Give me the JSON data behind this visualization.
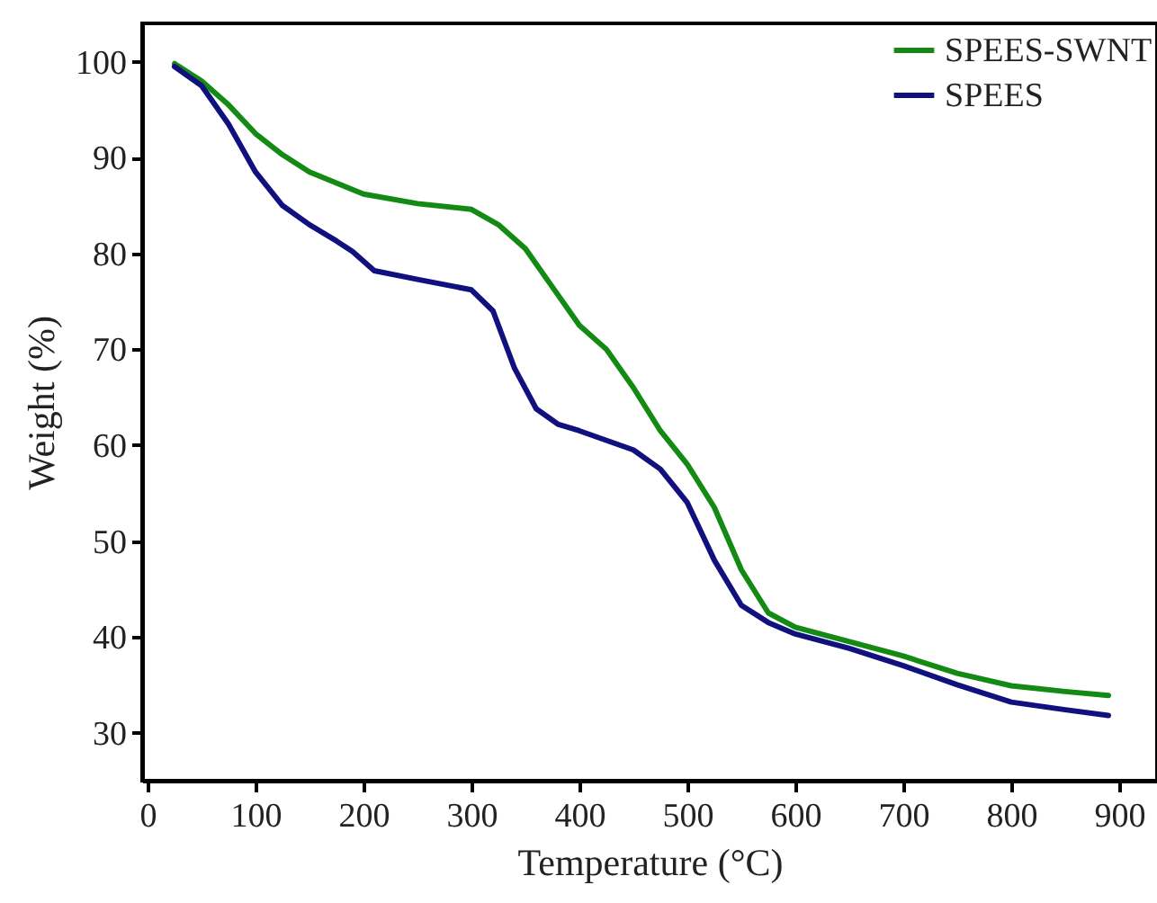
{
  "chart_data": {
    "type": "line",
    "xlabel": "Temperature (°C)",
    "ylabel": "Weight (%)",
    "xlim": [
      -5,
      935
    ],
    "ylim": [
      25,
      104
    ],
    "xticks": [
      0,
      100,
      200,
      300,
      400,
      500,
      600,
      700,
      800,
      900
    ],
    "yticks": [
      30,
      40,
      50,
      60,
      70,
      80,
      90,
      100
    ],
    "grid": false,
    "legend": "top right",
    "marker": "none",
    "line_style": "solid",
    "series": [
      {
        "name": "SPEES-SWNT",
        "color": "#138a13",
        "x": [
          25,
          50,
          75,
          100,
          125,
          150,
          200,
          250,
          300,
          325,
          350,
          375,
          400,
          425,
          450,
          475,
          500,
          525,
          550,
          575,
          600,
          650,
          700,
          750,
          800,
          850,
          890
        ],
        "values": [
          99.8,
          98,
          95.5,
          92.5,
          90.3,
          88.5,
          86.2,
          85.2,
          84.6,
          83,
          80.5,
          76.5,
          72.5,
          70,
          66,
          61.5,
          58,
          53.5,
          47,
          42.5,
          41,
          39.5,
          38,
          36.2,
          34.9,
          34.3,
          33.9
        ]
      },
      {
        "name": "SPEES",
        "color": "#10107f",
        "x": [
          25,
          50,
          75,
          100,
          125,
          150,
          175,
          190,
          210,
          250,
          300,
          320,
          340,
          360,
          380,
          400,
          450,
          475,
          500,
          525,
          550,
          575,
          600,
          650,
          700,
          750,
          800,
          850,
          890
        ],
        "values": [
          99.5,
          97.5,
          93.5,
          88.5,
          85,
          83,
          81.3,
          80.2,
          78.2,
          77.3,
          76.2,
          74,
          68,
          63.8,
          62.2,
          61.5,
          59.5,
          57.5,
          54,
          48,
          43.3,
          41.5,
          40.3,
          38.8,
          37,
          35,
          33.2,
          32.4,
          31.8
        ]
      }
    ]
  }
}
